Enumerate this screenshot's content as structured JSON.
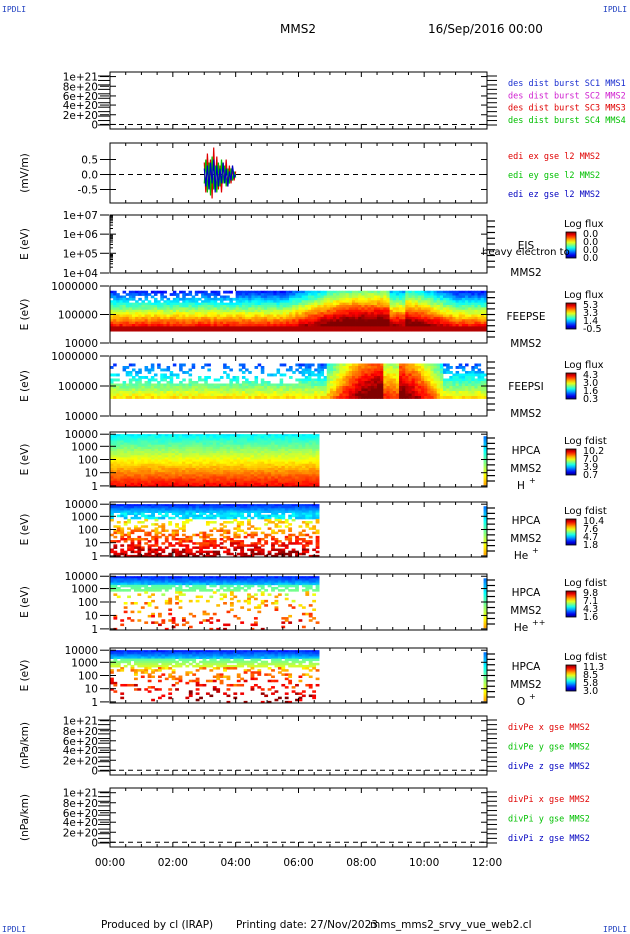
{
  "header": {
    "corner_label": "IPDLI",
    "spacecraft": "MMS2",
    "date": "16/Sep/2016 00:00"
  },
  "footer": {
    "produced_by": "Produced by cl (IRAP)",
    "printing_date": "Printing date: 27/Nov/2023",
    "filename": "mms_mms2_srvy_vue_web2.cl"
  },
  "colors": {
    "ch1": "#1a2ed0",
    "ch2": "#d020d0",
    "ch3": "#e00000",
    "ch4": "#00c000",
    "edi_x": "#e00000",
    "edi_y": "#00c000",
    "edi_z": "#0000c0"
  },
  "chart_data": [
    {
      "id": "dist",
      "type": "line",
      "ylabel": "",
      "yticks": [
        "1e+21",
        "8e+20",
        "6e+20",
        "4e+20",
        "2e+20",
        "0"
      ],
      "legend": [
        "des dist burst SC1 MMS1",
        "des dist burst SC2 MMS2",
        "des dist burst SC3 MMS3",
        "des dist burst SC4 MMS4"
      ],
      "legend_colors": [
        "#1a2ed0",
        "#d020d0",
        "#e00000",
        "#00c000"
      ],
      "series": []
    },
    {
      "id": "edi",
      "type": "line",
      "ylabel": "(mV/m)",
      "yticks": [
        "0.5",
        "0.0",
        "-0.5"
      ],
      "ylim": [
        -0.95,
        1.05
      ],
      "legend": [
        "edi ex gse l2 MMS2",
        "edi ey gse l2 MMS2",
        "edi ez gse l2 MMS2"
      ],
      "legend_colors": [
        "#e00000",
        "#00c000",
        "#0000c0"
      ],
      "series": [
        {
          "name": "edi ex gse l2 MMS2",
          "x": [
            3.0,
            3.05,
            3.1,
            3.15,
            3.2,
            3.25,
            3.3,
            3.35,
            3.4,
            3.45,
            3.5,
            3.55,
            3.6,
            3.65,
            3.7,
            3.75,
            3.8,
            3.85,
            3.9,
            3.95,
            4.0
          ],
          "values": [
            0.4,
            -0.6,
            0.7,
            -0.3,
            0.5,
            -0.8,
            0.9,
            -0.4,
            0.6,
            -0.5,
            0.3,
            -0.6,
            0.4,
            -0.2,
            0.5,
            -0.4,
            0.3,
            -0.3,
            0.2,
            -0.2,
            0.1
          ]
        },
        {
          "name": "edi ey gse l2 MMS2",
          "x": [
            3.0,
            3.05,
            3.1,
            3.15,
            3.2,
            3.25,
            3.3,
            3.35,
            3.4,
            3.45,
            3.5,
            3.55,
            3.6,
            3.65,
            3.7,
            3.75,
            3.8,
            3.85,
            3.9,
            3.95,
            4.0
          ],
          "values": [
            -0.3,
            0.5,
            -0.6,
            0.4,
            -0.7,
            0.6,
            -0.5,
            0.3,
            -0.6,
            0.4,
            -0.4,
            0.5,
            -0.3,
            0.3,
            -0.4,
            0.2,
            -0.3,
            0.2,
            -0.2,
            0.1,
            -0.1
          ]
        },
        {
          "name": "edi ez gse l2 MMS2",
          "x": [
            3.0,
            3.05,
            3.1,
            3.15,
            3.2,
            3.25,
            3.3,
            3.35,
            3.4,
            3.45,
            3.5,
            3.55,
            3.6,
            3.65,
            3.7,
            3.75,
            3.8,
            3.85,
            3.9,
            3.95,
            4.0
          ],
          "values": [
            0.2,
            -0.4,
            0.3,
            -0.5,
            0.4,
            -0.3,
            0.5,
            -0.6,
            0.3,
            -0.4,
            0.2,
            -0.3,
            0.4,
            -0.3,
            0.2,
            -0.4,
            0.1,
            -0.2,
            0.3,
            -0.1,
            0.0
          ]
        }
      ]
    },
    {
      "id": "eis",
      "type": "heatmap",
      "ylabel": "E (eV)",
      "yticks": [
        "1e+07",
        "1e+06",
        "1e+05",
        "1e+04"
      ],
      "instrument": "EIS",
      "instrument_extra": "heavy electron to",
      "spacecraft": "MMS2",
      "species": "",
      "cbar_title": "Log flux",
      "cbar_ticks": [
        "0.0",
        "0.0",
        "0.0",
        "0.0"
      ]
    },
    {
      "id": "feepse",
      "type": "heatmap",
      "ylabel": "E (eV)",
      "yticks": [
        "1000000",
        "100000",
        "10000"
      ],
      "instrument": "FEEPSE",
      "spacecraft": "MMS2",
      "species": "",
      "cbar_title": "Log flux",
      "cbar_ticks": [
        "5.3",
        "3.3",
        "1.4",
        "-0.5"
      ]
    },
    {
      "id": "feepsi",
      "type": "heatmap",
      "ylabel": "E (eV)",
      "yticks": [
        "1000000",
        "100000",
        "10000"
      ],
      "instrument": "FEEPSI",
      "spacecraft": "MMS2",
      "species": "",
      "cbar_title": "Log flux",
      "cbar_ticks": [
        "4.3",
        "3.0",
        "1.6",
        "0.3"
      ]
    },
    {
      "id": "hpca_h",
      "type": "heatmap",
      "ylabel": "E (eV)",
      "yticks": [
        "10000",
        "1000",
        "100",
        "10",
        "1"
      ],
      "instrument": "HPCA",
      "spacecraft": "MMS2",
      "species": "H",
      "species_sup": "+",
      "cbar_title": "Log fdist",
      "cbar_ticks": [
        "10.2",
        "7.0",
        "3.9",
        "0.7"
      ]
    },
    {
      "id": "hpca_he",
      "type": "heatmap",
      "ylabel": "E (eV)",
      "yticks": [
        "10000",
        "1000",
        "100",
        "10",
        "1"
      ],
      "instrument": "HPCA",
      "spacecraft": "MMS2",
      "species": "He",
      "species_sup": "+",
      "cbar_title": "Log fdist",
      "cbar_ticks": [
        "10.4",
        "7.6",
        "4.7",
        "1.8"
      ]
    },
    {
      "id": "hpca_he2",
      "type": "heatmap",
      "ylabel": "E (eV)",
      "yticks": [
        "10000",
        "1000",
        "100",
        "10",
        "1"
      ],
      "instrument": "HPCA",
      "spacecraft": "MMS2",
      "species": "He",
      "species_sup": "++",
      "cbar_title": "Log fdist",
      "cbar_ticks": [
        "9.8",
        "7.1",
        "4.3",
        "1.6"
      ]
    },
    {
      "id": "hpca_o",
      "type": "heatmap",
      "ylabel": "E (eV)",
      "yticks": [
        "10000",
        "1000",
        "100",
        "10",
        "1"
      ],
      "instrument": "HPCA",
      "spacecraft": "MMS2",
      "species": "O",
      "species_sup": "+",
      "cbar_title": "Log fdist",
      "cbar_ticks": [
        "11.3",
        "8.5",
        "5.8",
        "3.0"
      ]
    },
    {
      "id": "divpe",
      "type": "line",
      "ylabel": "(nPa/km)",
      "yticks": [
        "1e+21",
        "8e+20",
        "6e+20",
        "4e+20",
        "2e+20",
        "0"
      ],
      "legend": [
        "divPe x gse MMS2",
        "divPe y gse MMS2",
        "divPe z gse MMS2"
      ],
      "legend_colors": [
        "#e00000",
        "#00c000",
        "#0000c0"
      ],
      "series": []
    },
    {
      "id": "divpi",
      "type": "line",
      "ylabel": "(nPa/km)",
      "yticks": [
        "1e+21",
        "8e+20",
        "6e+20",
        "4e+20",
        "2e+20",
        "0"
      ],
      "legend": [
        "divPi x gse MMS2",
        "divPi y gse MMS2",
        "divPi z gse MMS2"
      ],
      "legend_colors": [
        "#e00000",
        "#00c000",
        "#0000c0"
      ],
      "series": []
    }
  ],
  "xaxis": {
    "ticks": [
      "00:00",
      "02:00",
      "04:00",
      "06:00",
      "08:00",
      "10:00",
      "12:00"
    ],
    "range_hours": [
      0,
      12
    ]
  }
}
